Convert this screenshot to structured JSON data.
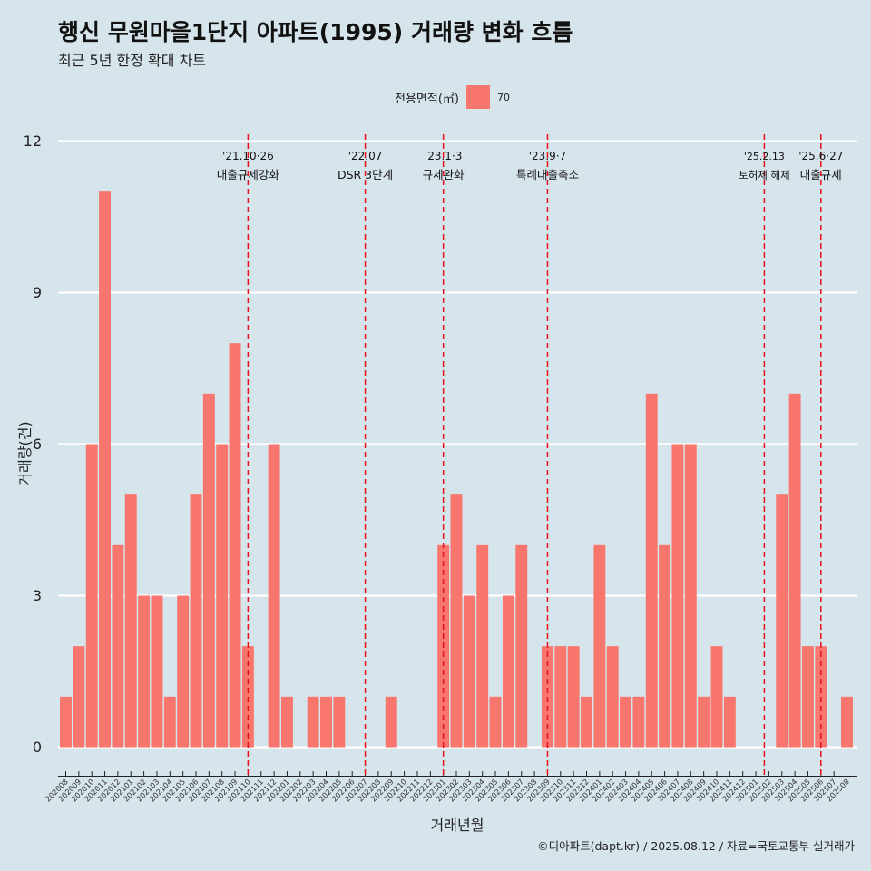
{
  "title": "행신 무원마을1단지 아파트(1995) 거래량 변화 흐름",
  "subtitle": "최근 5년 한정 확대 차트",
  "legend": {
    "title": "전용면적(㎡)",
    "label": "70",
    "color": "#f8766d"
  },
  "caption": "©디아파트(dapt.kr) / 2025.08.12 / 자료=국토교통부 실거래가",
  "chart_data": {
    "type": "bar",
    "xlabel": "거래년월",
    "ylabel": "거래량(건)",
    "ylim": [
      0,
      12
    ],
    "yticks": [
      0,
      3,
      6,
      9,
      12
    ],
    "grid": true,
    "legend_position": "top",
    "categories": [
      "202008",
      "202009",
      "202010",
      "202011",
      "202012",
      "202101",
      "202102",
      "202103",
      "202104",
      "202105",
      "202106",
      "202107",
      "202108",
      "202109",
      "202110",
      "202111",
      "202112",
      "202201",
      "202202",
      "202203",
      "202204",
      "202205",
      "202206",
      "202207",
      "202208",
      "202209",
      "202210",
      "202211",
      "202212",
      "202301",
      "202302",
      "202303",
      "202304",
      "202305",
      "202306",
      "202307",
      "202308",
      "202309",
      "202310",
      "202311",
      "202312",
      "202401",
      "202402",
      "202403",
      "202404",
      "202405",
      "202406",
      "202407",
      "202408",
      "202409",
      "202410",
      "202411",
      "202412",
      "202501",
      "202502",
      "202503",
      "202504",
      "202505",
      "202506",
      "202507",
      "202508"
    ],
    "series": [
      {
        "name": "70",
        "color": "#f8766d",
        "values": [
          1,
          2,
          6,
          11,
          4,
          5,
          3,
          3,
          1,
          3,
          5,
          7,
          6,
          8,
          2,
          0,
          6,
          1,
          0,
          1,
          1,
          1,
          0,
          0,
          0,
          1,
          0,
          0,
          0,
          4,
          5,
          3,
          4,
          1,
          3,
          4,
          0,
          2,
          2,
          2,
          1,
          4,
          2,
          1,
          1,
          7,
          4,
          6,
          6,
          1,
          2,
          1,
          0,
          0,
          0,
          5,
          7,
          2,
          2,
          0,
          1
        ]
      }
    ],
    "annotations": [
      {
        "x": "202110",
        "line1": "'21.10·26",
        "line2": "대출규제강화"
      },
      {
        "x": "202207",
        "line1": "'22.07",
        "line2": "DSR 3단계"
      },
      {
        "x": "202301",
        "line1": "'23.1·3",
        "line2": "규제완화"
      },
      {
        "x": "202309",
        "line1": "'23.9·7",
        "line2": "특례대출축소"
      },
      {
        "x": "202502",
        "line1": "'25.2.13",
        "line2": "토허제 해제"
      },
      {
        "x": "202506",
        "line1": "'25.6·27",
        "line2": "대출규제"
      }
    ]
  }
}
